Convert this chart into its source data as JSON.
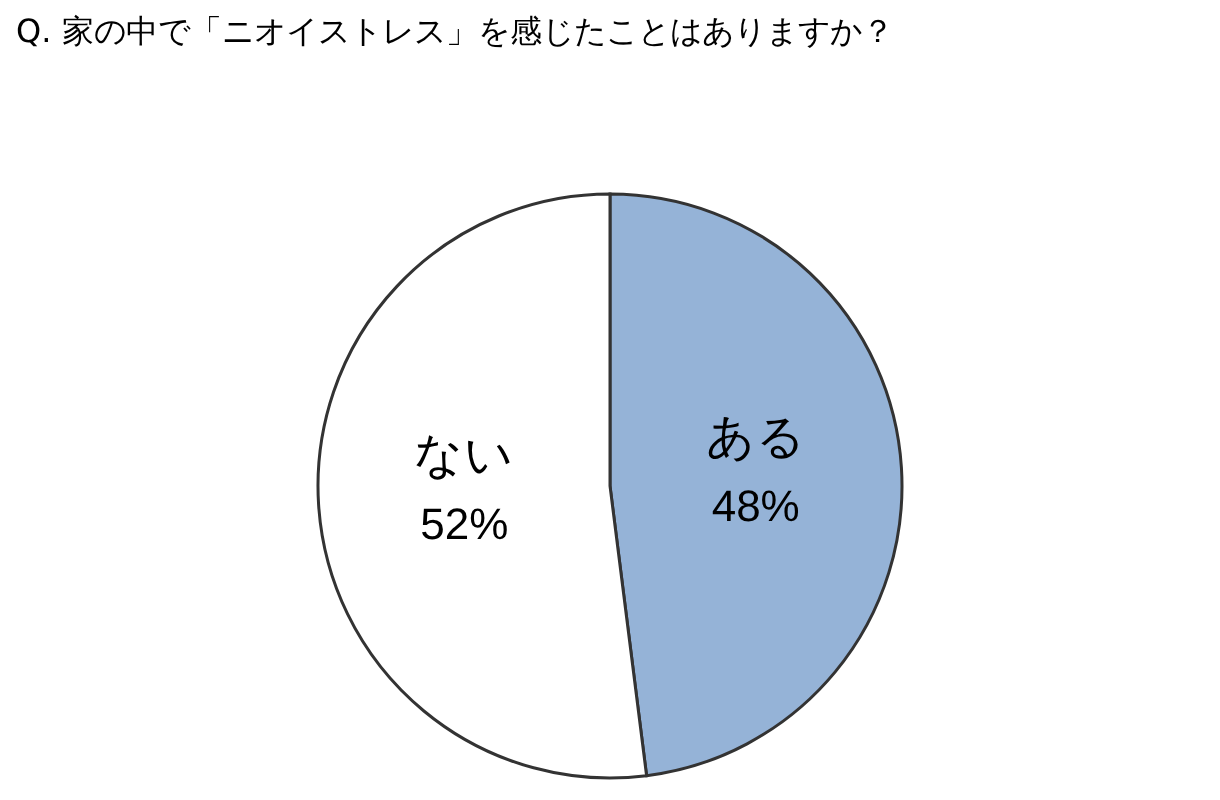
{
  "chart_data": {
    "type": "pie",
    "title": "Q. 家の中で「ニオイストレス」を感じたことはありますか？",
    "categories": [
      "ある",
      "ない"
    ],
    "values": [
      48,
      52
    ],
    "value_labels": [
      "48%",
      "52%"
    ],
    "colors": [
      "#95b3d7",
      "#ffffff"
    ]
  }
}
